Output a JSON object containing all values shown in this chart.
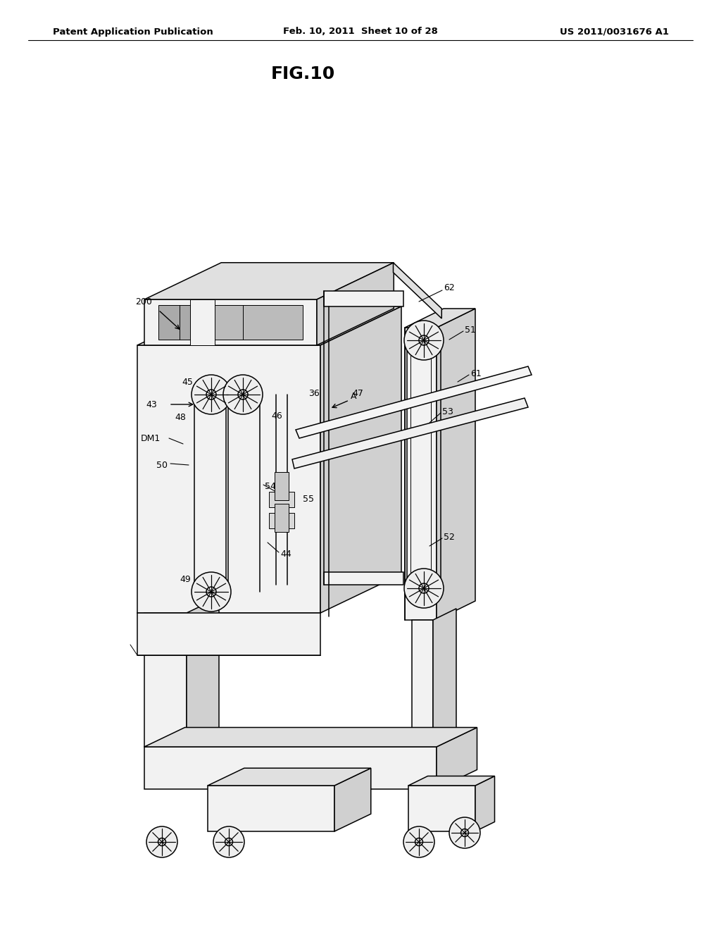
{
  "bg_color": "#ffffff",
  "line_color": "#000000",
  "header_left": "Patent Application Publication",
  "header_mid": "Feb. 10, 2011  Sheet 10 of 28",
  "header_right": "US 2011/0031676 A1",
  "fig_label": "FIG.10",
  "header_fontsize": 9.5,
  "fig_label_fontsize": 18,
  "label_fontsize": 9,
  "lw_main": 1.1,
  "lw_thin": 0.7,
  "fill_front": "#f2f2f2",
  "fill_top": "#e0e0e0",
  "fill_right": "#d0d0d0",
  "fill_dark": "#c0c0c0",
  "fill_white": "#ffffff"
}
